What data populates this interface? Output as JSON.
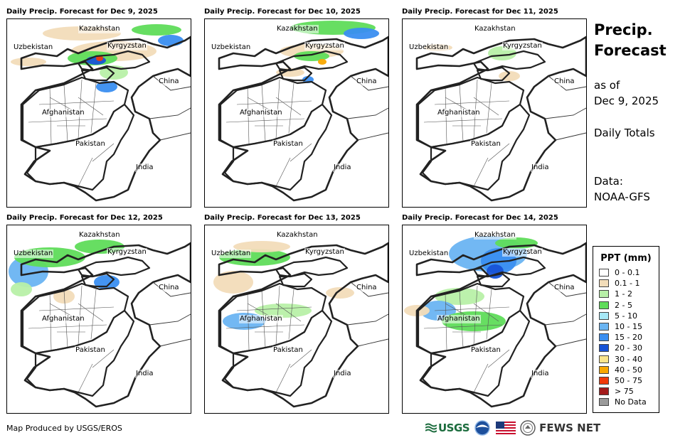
{
  "panels": [
    {
      "title": "Daily Precip. Forecast for Dec 9, 2025"
    },
    {
      "title": "Daily Precip. Forecast for Dec 10, 2025"
    },
    {
      "title": "Daily Precip. Forecast for Dec 11, 2025"
    },
    {
      "title": "Daily Precip. Forecast for Dec 12, 2025"
    },
    {
      "title": "Daily Precip. Forecast for Dec 13, 2025"
    },
    {
      "title": "Daily Precip. Forecast for Dec 14, 2025"
    }
  ],
  "countries": {
    "kazakhstan": "Kazakhstan",
    "uzbekistan": "Uzbekistan",
    "kyrgyzstan": "Kyrgyzstan",
    "china": "China",
    "afghanistan": "Afghanistan",
    "pakistan": "Pakistan",
    "india": "India"
  },
  "side": {
    "title_line1": "Precip.",
    "title_line2": "Forecast",
    "asof_line1": "as of",
    "asof_line2": "Dec 9, 2025",
    "totals": "Daily Totals",
    "data_label": "Data:",
    "data_source": "NOAA-GFS"
  },
  "legend": {
    "title": "PPT (mm)",
    "items": [
      {
        "label": "0 - 0.1",
        "color": "#ffffff"
      },
      {
        "label": "0.1 - 1",
        "color": "#f2dcb9"
      },
      {
        "label": "1 - 2",
        "color": "#b8f0a8"
      },
      {
        "label": "2 - 5",
        "color": "#5fdc5a"
      },
      {
        "label": "5 - 10",
        "color": "#a6e8f6"
      },
      {
        "label": "10 - 15",
        "color": "#6ab4f2"
      },
      {
        "label": "15 - 20",
        "color": "#3a8ef0"
      },
      {
        "label": "20 - 30",
        "color": "#1753d6"
      },
      {
        "label": "30 - 40",
        "color": "#fbe58c"
      },
      {
        "label": "40 - 50",
        "color": "#f9a800"
      },
      {
        "label": "50 - 75",
        "color": "#f03a0a"
      },
      {
        "label": "> 75",
        "color": "#a31a1a"
      },
      {
        "label": "No Data",
        "color": "#9a9a9a"
      }
    ]
  },
  "footer": {
    "credit": "Map Produced by USGS/EROS",
    "usgs": "USGS",
    "fews": "FEWS NET"
  }
}
